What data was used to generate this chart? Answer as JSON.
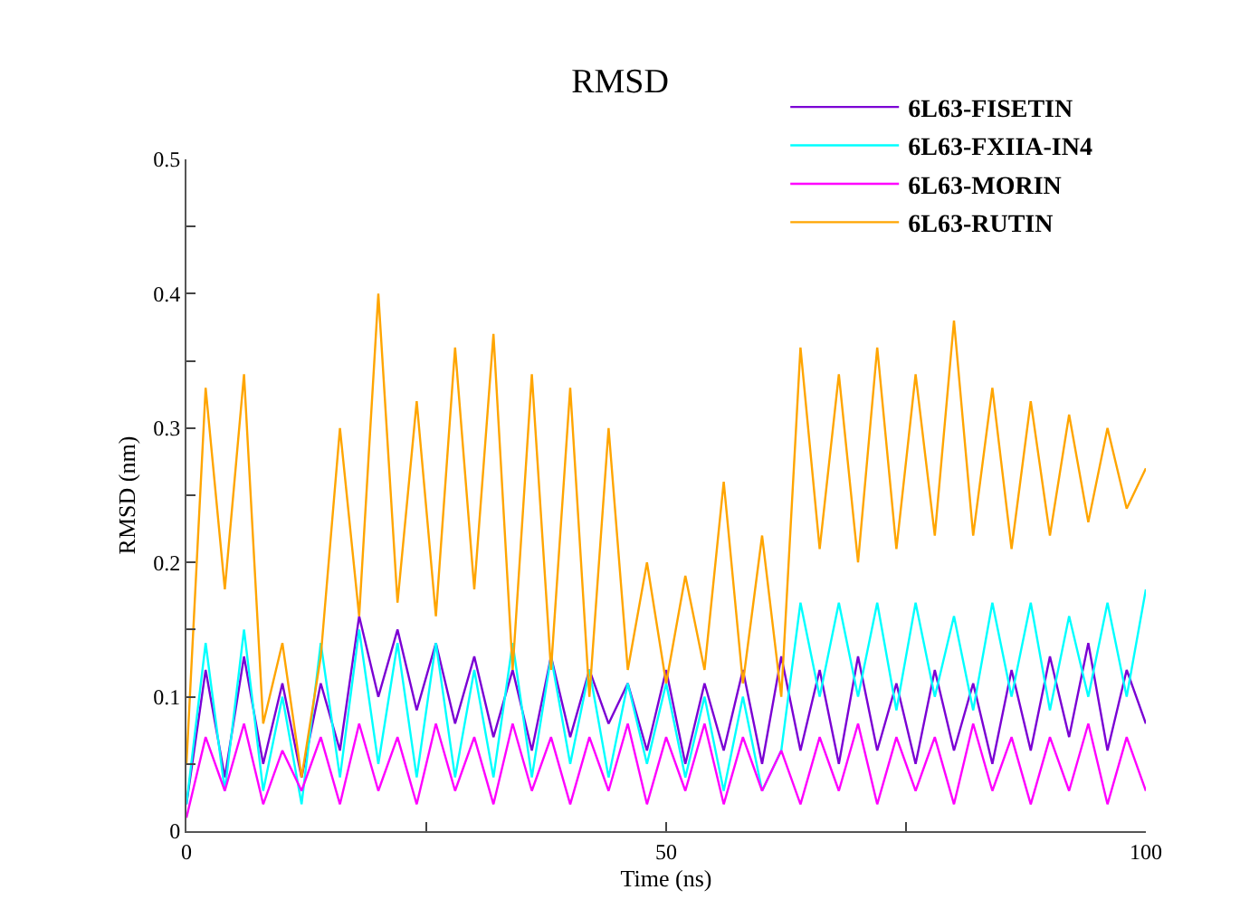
{
  "chart_data": {
    "type": "line",
    "title": "RMSD",
    "xlabel": "Time (ns)",
    "ylabel": "RMSD (nm)",
    "x": [
      0,
      2,
      4,
      6,
      8,
      10,
      12,
      14,
      16,
      18,
      20,
      22,
      24,
      26,
      28,
      30,
      32,
      34,
      36,
      38,
      40,
      42,
      44,
      46,
      48,
      50,
      52,
      54,
      56,
      58,
      60,
      62,
      64,
      66,
      68,
      70,
      72,
      74,
      76,
      78,
      80,
      82,
      84,
      86,
      88,
      90,
      92,
      94,
      96,
      98,
      100
    ],
    "series": [
      {
        "name": "6L63-FISETIN",
        "color": "#7b00d4",
        "values": [
          0.02,
          0.12,
          0.04,
          0.13,
          0.05,
          0.11,
          0.04,
          0.11,
          0.06,
          0.16,
          0.1,
          0.15,
          0.09,
          0.14,
          0.08,
          0.13,
          0.07,
          0.12,
          0.06,
          0.13,
          0.07,
          0.12,
          0.08,
          0.11,
          0.06,
          0.12,
          0.05,
          0.11,
          0.06,
          0.12,
          0.05,
          0.13,
          0.06,
          0.12,
          0.05,
          0.13,
          0.06,
          0.11,
          0.05,
          0.12,
          0.06,
          0.11,
          0.05,
          0.12,
          0.06,
          0.13,
          0.07,
          0.14,
          0.06,
          0.12,
          0.08
        ]
      },
      {
        "name": "6L63-FXIIA-IN4",
        "color": "#00ffff",
        "values": [
          0.02,
          0.14,
          0.03,
          0.15,
          0.03,
          0.1,
          0.02,
          0.14,
          0.04,
          0.15,
          0.05,
          0.14,
          0.04,
          0.14,
          0.04,
          0.12,
          0.04,
          0.14,
          0.04,
          0.13,
          0.05,
          0.12,
          0.04,
          0.11,
          0.05,
          0.11,
          0.04,
          0.1,
          0.03,
          0.1,
          0.03,
          0.06,
          0.17,
          0.1,
          0.17,
          0.1,
          0.17,
          0.09,
          0.17,
          0.1,
          0.16,
          0.09,
          0.17,
          0.1,
          0.17,
          0.09,
          0.16,
          0.1,
          0.17,
          0.1,
          0.18
        ]
      },
      {
        "name": "6L63-MORIN",
        "color": "#ff00ff",
        "values": [
          0.01,
          0.07,
          0.03,
          0.08,
          0.02,
          0.06,
          0.03,
          0.07,
          0.02,
          0.08,
          0.03,
          0.07,
          0.02,
          0.08,
          0.03,
          0.07,
          0.02,
          0.08,
          0.03,
          0.07,
          0.02,
          0.07,
          0.03,
          0.08,
          0.02,
          0.07,
          0.03,
          0.08,
          0.02,
          0.07,
          0.03,
          0.06,
          0.02,
          0.07,
          0.03,
          0.08,
          0.02,
          0.07,
          0.03,
          0.07,
          0.02,
          0.08,
          0.03,
          0.07,
          0.02,
          0.07,
          0.03,
          0.08,
          0.02,
          0.07,
          0.03
        ]
      },
      {
        "name": "6L63-RUTIN",
        "color": "#ffa500",
        "values": [
          0.05,
          0.33,
          0.18,
          0.34,
          0.08,
          0.14,
          0.04,
          0.13,
          0.3,
          0.16,
          0.4,
          0.17,
          0.32,
          0.16,
          0.36,
          0.18,
          0.37,
          0.12,
          0.34,
          0.12,
          0.33,
          0.1,
          0.3,
          0.12,
          0.2,
          0.11,
          0.19,
          0.12,
          0.26,
          0.11,
          0.22,
          0.1,
          0.36,
          0.21,
          0.34,
          0.2,
          0.36,
          0.21,
          0.34,
          0.22,
          0.38,
          0.22,
          0.33,
          0.21,
          0.32,
          0.22,
          0.31,
          0.23,
          0.3,
          0.24,
          0.27
        ]
      }
    ],
    "xlim": [
      0,
      100
    ],
    "xticks": [
      0,
      {
        "value": 25,
        "label": null
      },
      50,
      {
        "value": 75,
        "label": null
      },
      100
    ],
    "ylim": [
      0,
      0.5
    ],
    "yticks": [
      0,
      {
        "value": 0.05,
        "label": null
      },
      0.1,
      {
        "value": 0.15,
        "label": null
      },
      0.2,
      {
        "value": 0.25,
        "label": null
      },
      0.3,
      {
        "value": 0.35,
        "label": null
      },
      0.4,
      {
        "value": 0.45,
        "label": null
      },
      0.5
    ],
    "grid": false,
    "legend": "top right",
    "marker": "none",
    "line_style": "solid"
  }
}
